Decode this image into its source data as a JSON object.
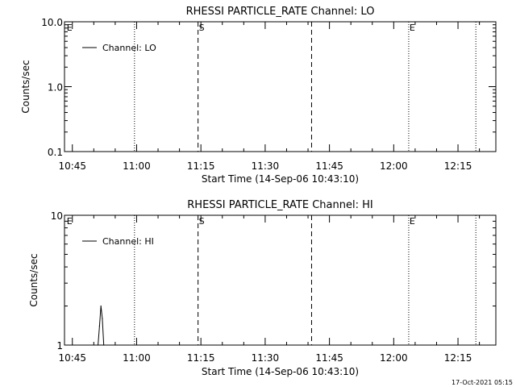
{
  "chart_data": [
    {
      "type": "line",
      "title": "RHESSI PARTICLE_RATE Channel: LO",
      "xlabel": "Start Time (14-Sep-06 10:43:10)",
      "ylabel": "Counts/sec",
      "yscale": "log",
      "ylim": [
        0.1,
        10.0
      ],
      "yticks": [
        {
          "value": 0.1,
          "label": "0.1"
        },
        {
          "value": 1.0,
          "label": "1.0"
        },
        {
          "value": 10.0,
          "label": "10.0"
        }
      ],
      "xlim": [
        "10:43:10",
        "12:23:50"
      ],
      "xticks": [
        "10:45",
        "11:00",
        "11:15",
        "11:30",
        "11:45",
        "12:00",
        "12:15"
      ],
      "legend": {
        "entries": [
          "Channel: LO"
        ],
        "placement": "top-left"
      },
      "series": [
        {
          "name": "Channel: LO",
          "points": []
        }
      ],
      "markers": [
        {
          "time": "10:43:30",
          "label": "E",
          "style": "none"
        },
        {
          "time": "10:59:30",
          "label": "",
          "style": "dotted"
        },
        {
          "time": "11:14:20",
          "label": "S",
          "style": "dashed"
        },
        {
          "time": "11:40:50",
          "label": "",
          "style": "dashed"
        },
        {
          "time": "12:03:30",
          "label": "E",
          "style": "dotted"
        },
        {
          "time": "12:19:10",
          "label": "",
          "style": "dotted"
        }
      ]
    },
    {
      "type": "line",
      "title": "RHESSI PARTICLE_RATE Channel: HI",
      "xlabel": "Start Time (14-Sep-06 10:43:10)",
      "ylabel": "Counts/sec",
      "yscale": "log",
      "ylim": [
        1,
        10
      ],
      "yticks": [
        {
          "value": 1,
          "label": "1"
        },
        {
          "value": 10,
          "label": "10"
        }
      ],
      "xlim": [
        "10:43:10",
        "12:23:50"
      ],
      "xticks": [
        "10:45",
        "11:00",
        "11:15",
        "11:30",
        "11:45",
        "12:00",
        "12:15"
      ],
      "legend": {
        "entries": [
          "Channel: HI"
        ],
        "placement": "top-left"
      },
      "series": [
        {
          "name": "Channel: HI",
          "points": [
            {
              "x": "10:51:00",
              "y": 1.0
            },
            {
              "x": "10:51:20",
              "y": 1.4
            },
            {
              "x": "10:51:40",
              "y": 2.0
            },
            {
              "x": "10:52:00",
              "y": 1.6
            },
            {
              "x": "10:52:20",
              "y": 1.0
            }
          ]
        }
      ],
      "markers": [
        {
          "time": "10:43:30",
          "label": "E",
          "style": "none"
        },
        {
          "time": "10:59:30",
          "label": "",
          "style": "dotted"
        },
        {
          "time": "11:14:20",
          "label": "S",
          "style": "dashed"
        },
        {
          "time": "11:40:50",
          "label": "",
          "style": "dashed"
        },
        {
          "time": "12:03:30",
          "label": "E",
          "style": "dotted"
        },
        {
          "time": "12:19:10",
          "label": "",
          "style": "dotted"
        }
      ]
    }
  ],
  "footer": {
    "timestamp": "17-Oct-2021 05:15"
  }
}
